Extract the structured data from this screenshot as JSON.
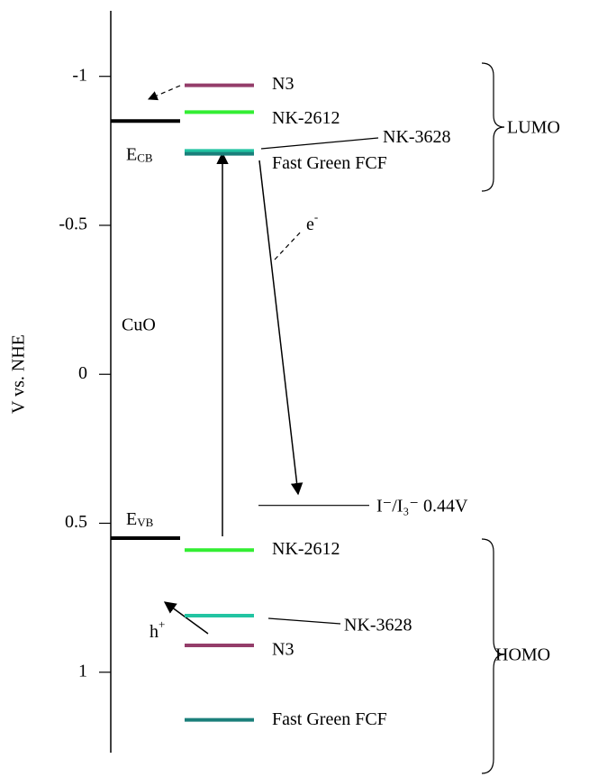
{
  "chart_data": {
    "type": "energy-levels",
    "y_label": "V vs. NHE",
    "ylim": [
      -1.22,
      1.27
    ],
    "invert_y": true,
    "yticks": [
      -1,
      -0.5,
      0,
      0.5,
      1
    ],
    "semiconductor": {
      "name": "CuO",
      "color": "#000000",
      "cb": {
        "symbol": "E",
        "sub": "CB",
        "value": -0.85
      },
      "vb": {
        "symbol": "E",
        "sub": "VB",
        "value": 0.55
      }
    },
    "dyes": [
      {
        "name": "N3",
        "color": "#943d6a",
        "lumo": -0.97,
        "homo": 0.91
      },
      {
        "name": "NK-2612",
        "color": "#33ee33",
        "lumo": -0.88,
        "homo": 0.59
      },
      {
        "name": "NK-3628",
        "color": "#22c4a2",
        "lumo": -0.75,
        "homo": 0.81
      },
      {
        "name": "Fast Green FCF",
        "color": "#1a7f7a",
        "lumo": -0.74,
        "homo": 1.16
      }
    ],
    "redox": {
      "label": "I⁻/I₃⁻ 0.44V",
      "value": 0.44
    },
    "groups": {
      "lumo": "LUMO",
      "homo": "HOMO"
    },
    "electron": {
      "symbol": "e",
      "sup": "-"
    },
    "hole": {
      "symbol": "h",
      "sup": "+"
    }
  }
}
